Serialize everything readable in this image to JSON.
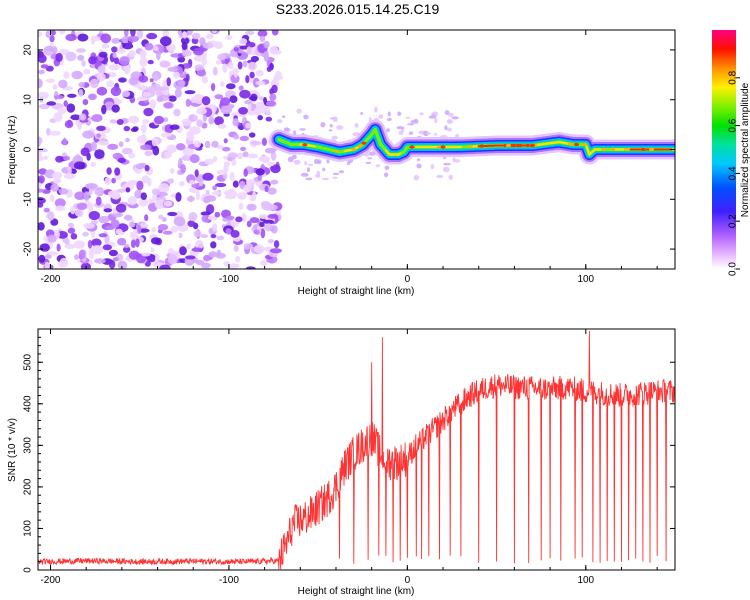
{
  "title": "S233.2026.015.14.25.C19",
  "chart_data": [
    {
      "type": "heatmap",
      "xlabel": "Height of straight line (km)",
      "ylabel": "Frequency (Hz)",
      "xlim": [
        -207,
        150
      ],
      "ylim": [
        -24,
        24
      ],
      "xticks": [
        -200,
        -100,
        0,
        100
      ],
      "yticks": [
        -20,
        -10,
        0,
        10,
        20
      ],
      "noise_region_x": [
        -207,
        -72
      ],
      "ridge": [
        [
          -72,
          2
        ],
        [
          -65,
          1
        ],
        [
          -58,
          1
        ],
        [
          -50,
          0.5
        ],
        [
          -44,
          0
        ],
        [
          -38,
          -0.5
        ],
        [
          -30,
          0
        ],
        [
          -25,
          1
        ],
        [
          -20,
          3
        ],
        [
          -18,
          4
        ],
        [
          -15,
          1
        ],
        [
          -10,
          -1
        ],
        [
          -5,
          -1
        ],
        [
          -2,
          -0.5
        ],
        [
          0,
          0.5
        ],
        [
          10,
          0.5
        ],
        [
          30,
          0.5
        ],
        [
          50,
          0.8
        ],
        [
          70,
          0.8
        ],
        [
          85,
          1.5
        ],
        [
          93,
          1
        ],
        [
          100,
          1
        ],
        [
          102,
          -1
        ],
        [
          105,
          0
        ],
        [
          120,
          0
        ],
        [
          140,
          0
        ],
        [
          150,
          0
        ]
      ],
      "colorbar": {
        "label": "Normalized spectral amplitude",
        "min": 0.0,
        "max": 1.0,
        "ticks": [
          0.0,
          0.2,
          0.4,
          0.6,
          0.8
        ],
        "tick_labels": [
          "0.0",
          "0.2",
          "0.4",
          "0.6",
          "0.8"
        ]
      }
    },
    {
      "type": "line",
      "xlabel": "Height of straight line (km)",
      "ylabel": "SNR (10 * v/v)",
      "xlim": [
        -207,
        150
      ],
      "ylim": [
        0,
        580
      ],
      "xticks": [
        -200,
        -100,
        0,
        100
      ],
      "yticks": [
        0,
        100,
        200,
        300,
        400,
        500
      ],
      "color": "#ff3333",
      "series": [
        {
          "name": "SNR",
          "x": [
            -207,
            -180,
            -150,
            -120,
            -90,
            -72,
            -68,
            -64,
            -60,
            -55,
            -50,
            -45,
            -40,
            -35,
            -30,
            -25,
            -20,
            -15,
            -10,
            -5,
            0,
            5,
            10,
            15,
            20,
            25,
            30,
            35,
            40,
            45,
            50,
            60,
            70,
            80,
            90,
            100,
            110,
            120,
            130,
            140,
            150
          ],
          "y": [
            20,
            22,
            20,
            21,
            20,
            22,
            60,
            110,
            120,
            130,
            150,
            170,
            200,
            250,
            280,
            300,
            320,
            280,
            260,
            260,
            270,
            300,
            320,
            340,
            360,
            385,
            400,
            420,
            430,
            440,
            445,
            440,
            438,
            435,
            440,
            430,
            425,
            420,
            425,
            430,
            430
          ]
        }
      ],
      "spikes_up": [
        [
          -14,
          560
        ],
        [
          -20,
          500
        ],
        [
          102,
          575
        ],
        [
          90,
          460
        ]
      ],
      "dropouts_x": [
        -38,
        -30,
        -22,
        -16,
        -12,
        -8,
        -4,
        0,
        5,
        8,
        12,
        18,
        24,
        30,
        40,
        50,
        60,
        68,
        75,
        80,
        86,
        90,
        94,
        98,
        104,
        108,
        112,
        116,
        120,
        124,
        128,
        132,
        136,
        140,
        145
      ]
    }
  ]
}
